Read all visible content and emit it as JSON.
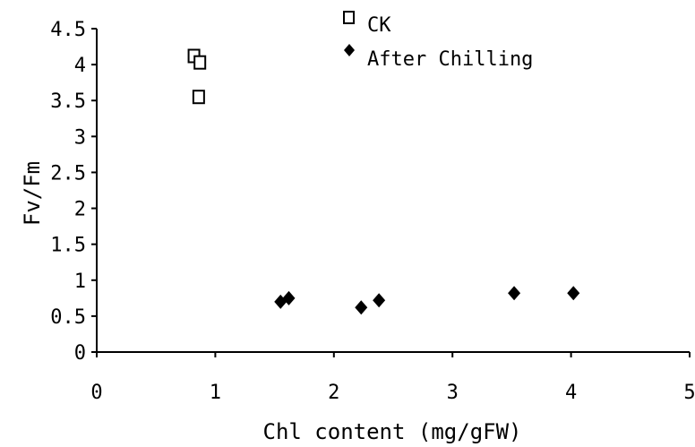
{
  "chart_data": {
    "type": "scatter",
    "xlabel": "Chl content (mg/gFW)",
    "ylabel": "Fv/Fm",
    "xlim": [
      0,
      5
    ],
    "ylim": [
      0,
      4.5
    ],
    "x_ticks": [
      "0",
      "1",
      "2",
      "3",
      "4",
      "5"
    ],
    "y_ticks": [
      "0",
      "0.5",
      "1",
      "1.5",
      "2",
      "2.5",
      "3",
      "3.5",
      "4",
      "4.5"
    ],
    "grid": false,
    "legend": "top-right",
    "series": [
      {
        "name": "CK",
        "marker": "open-square",
        "points": [
          {
            "x": 0.82,
            "y": 4.12
          },
          {
            "x": 0.87,
            "y": 4.03
          },
          {
            "x": 0.86,
            "y": 3.55
          }
        ]
      },
      {
        "name": "After Chilling",
        "marker": "filled-diamond",
        "points": [
          {
            "x": 1.55,
            "y": 0.7
          },
          {
            "x": 1.62,
            "y": 0.75
          },
          {
            "x": 2.23,
            "y": 0.62
          },
          {
            "x": 2.38,
            "y": 0.72
          },
          {
            "x": 3.52,
            "y": 0.82
          },
          {
            "x": 4.02,
            "y": 0.82
          }
        ]
      }
    ]
  }
}
